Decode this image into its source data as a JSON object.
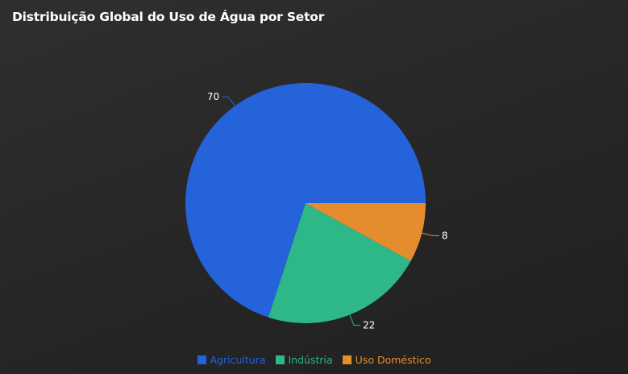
{
  "chart_data": {
    "type": "pie",
    "title": "Distribuição Global do Uso de Água por Setor",
    "categories": [
      "Agricultura",
      "Indústria",
      "Uso Doméstico"
    ],
    "values": [
      70,
      22,
      8
    ],
    "colors": [
      "#2563db",
      "#2eb888",
      "#e58d2e"
    ],
    "legend_position": "bottom"
  }
}
